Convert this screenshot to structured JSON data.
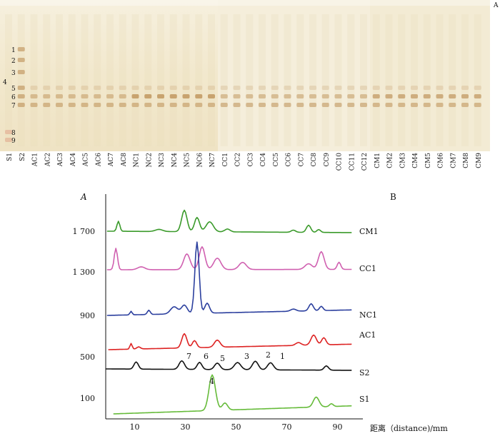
{
  "panel_a": {
    "label": "A",
    "plate_colors": [
      "#f3ead2",
      "#f6efdc",
      "#f4ecd6"
    ],
    "band_color": "#b8874a",
    "band_numbers": [
      "1",
      "2",
      "3",
      "4",
      "5",
      "6",
      "7",
      "8",
      "9"
    ],
    "lanes": [
      "S1",
      "S2",
      "AC1",
      "AC2",
      "AC3",
      "AC4",
      "AC5",
      "AC6",
      "AC7",
      "AC8",
      "NC1",
      "NC2",
      "NC3",
      "NC4",
      "NC5",
      "NC6",
      "NC7",
      "CC1",
      "CC2",
      "CC3",
      "CC4",
      "CC5",
      "CC6",
      "CC7",
      "CC8",
      "CC9",
      "CC10",
      "CC11",
      "CC12",
      "CM1",
      "CM2",
      "CM3",
      "CM4",
      "CM5",
      "CM6",
      "CM7",
      "CM8",
      "CM9"
    ]
  },
  "panel_b": {
    "label": "B",
    "y_axis_label": "A",
    "x_axis_label": "距离（distance)/mm",
    "x_ticks": [
      "10",
      "30",
      "50",
      "70",
      "90"
    ],
    "y_ticks": [
      "1 700",
      "1 300",
      "900",
      "500",
      "100"
    ],
    "peak_labels": [
      "7",
      "6",
      "5",
      "3",
      "2",
      "1",
      "4"
    ],
    "traces": [
      {
        "name": "CM1",
        "color": "#3a9a2a"
      },
      {
        "name": "CC1",
        "color": "#d060b0"
      },
      {
        "name": "NC1",
        "color": "#2b3f9e"
      },
      {
        "name": "AC1",
        "color": "#dd2222"
      },
      {
        "name": "S2",
        "color": "#111111"
      },
      {
        "name": "S1",
        "color": "#66bb3a"
      }
    ]
  }
}
